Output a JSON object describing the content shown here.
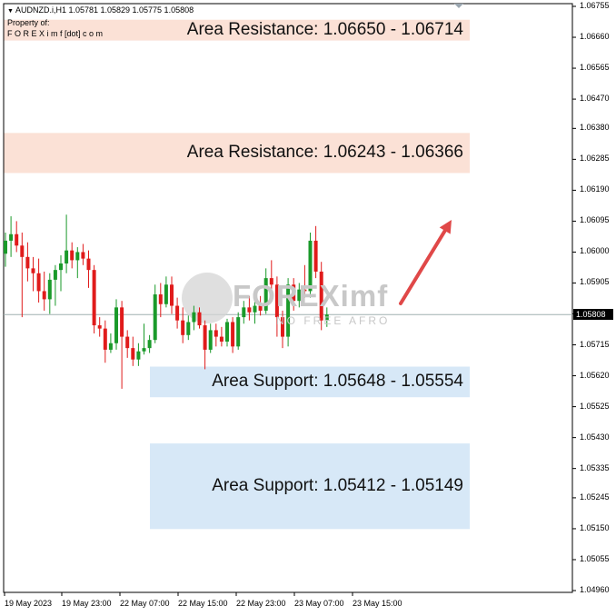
{
  "header": {
    "symbol_line": "AUDNZD.i,H1  1.05781 1.05829 1.05775 1.05808",
    "property_line": "Property of:",
    "brand_line": "F O R E X i m f [dot] c o m"
  },
  "watermark": {
    "brand": "FOREXimf",
    "tagline": "NO FREE AFRO"
  },
  "arrow": {
    "direction": "up-right",
    "color": "#e04848"
  },
  "current_price": {
    "value": 1.05808,
    "label": "1.05808"
  },
  "colors": {
    "bull": "#1a9a2a",
    "bear": "#e01b1b",
    "resistance_band": "#fbe1d6",
    "support_band": "#d7e8f7",
    "price_line": "#a0b0b0"
  },
  "chart_data": {
    "type": "candlestick",
    "symbol": "AUDNZD.i",
    "timeframe": "H1",
    "ylim": [
      1.0496,
      1.06755
    ],
    "y_ticks": [
      "1.06755",
      "1.06660",
      "1.06565",
      "1.06470",
      "1.06380",
      "1.06285",
      "1.06190",
      "1.06095",
      "1.06000",
      "1.05905",
      "1.05810",
      "1.05715",
      "1.05620",
      "1.05525",
      "1.05430",
      "1.05335",
      "1.05245",
      "1.05150",
      "1.05055",
      "1.04960"
    ],
    "x_ticks": [
      "19 May 2023",
      "19 May 23:00",
      "22 May 07:00",
      "22 May 15:00",
      "22 May 23:00",
      "23 May 07:00",
      "23 May 15:00"
    ],
    "zones": [
      {
        "type": "resistance",
        "label": "Area Resistance: 1.06650 - 1.06714",
        "low": 1.0665,
        "high": 1.06714
      },
      {
        "type": "resistance",
        "label": "Area Resistance: 1.06243 - 1.06366",
        "low": 1.06243,
        "high": 1.06366
      },
      {
        "type": "support",
        "label": "Area Support: 1.05648 - 1.05554",
        "low": 1.05554,
        "high": 1.05648
      },
      {
        "type": "support",
        "label": "Area Support: 1.05412 - 1.05149",
        "low": 1.05149,
        "high": 1.05412
      }
    ],
    "candles": [
      {
        "o": 1.05995,
        "h": 1.0606,
        "l": 1.05955,
        "c": 1.06035
      },
      {
        "o": 1.06035,
        "h": 1.0611,
        "l": 1.05985,
        "c": 1.06055
      },
      {
        "o": 1.06055,
        "h": 1.06095,
        "l": 1.06,
        "c": 1.0602
      },
      {
        "o": 1.0602,
        "h": 1.0606,
        "l": 1.058,
        "c": 1.05985
      },
      {
        "o": 1.05985,
        "h": 1.0603,
        "l": 1.0591,
        "c": 1.0595
      },
      {
        "o": 1.0595,
        "h": 1.05985,
        "l": 1.0588,
        "c": 1.05935
      },
      {
        "o": 1.05935,
        "h": 1.0598,
        "l": 1.05845,
        "c": 1.0588
      },
      {
        "o": 1.0588,
        "h": 1.0594,
        "l": 1.0582,
        "c": 1.05855
      },
      {
        "o": 1.05855,
        "h": 1.05935,
        "l": 1.0581,
        "c": 1.05915
      },
      {
        "o": 1.05915,
        "h": 1.0596,
        "l": 1.05835,
        "c": 1.05945
      },
      {
        "o": 1.05945,
        "h": 1.0599,
        "l": 1.0588,
        "c": 1.05965
      },
      {
        "o": 1.05965,
        "h": 1.06115,
        "l": 1.05935,
        "c": 1.06005
      },
      {
        "o": 1.06005,
        "h": 1.0603,
        "l": 1.0595,
        "c": 1.05975
      },
      {
        "o": 1.05975,
        "h": 1.06015,
        "l": 1.0592,
        "c": 1.06
      },
      {
        "o": 1.06,
        "h": 1.06025,
        "l": 1.0596,
        "c": 1.0598
      },
      {
        "o": 1.0598,
        "h": 1.06005,
        "l": 1.0589,
        "c": 1.05945
      },
      {
        "o": 1.05945,
        "h": 1.0596,
        "l": 1.0575,
        "c": 1.05775
      },
      {
        "o": 1.05775,
        "h": 1.058,
        "l": 1.0574,
        "c": 1.05765
      },
      {
        "o": 1.05765,
        "h": 1.0579,
        "l": 1.0566,
        "c": 1.057
      },
      {
        "o": 1.057,
        "h": 1.0575,
        "l": 1.0569,
        "c": 1.0572
      },
      {
        "o": 1.0572,
        "h": 1.05855,
        "l": 1.057,
        "c": 1.0583
      },
      {
        "o": 1.0583,
        "h": 1.0585,
        "l": 1.0558,
        "c": 1.0574
      },
      {
        "o": 1.0574,
        "h": 1.0576,
        "l": 1.05675,
        "c": 1.05705
      },
      {
        "o": 1.05705,
        "h": 1.0574,
        "l": 1.0565,
        "c": 1.0567
      },
      {
        "o": 1.0567,
        "h": 1.0572,
        "l": 1.0565,
        "c": 1.05695
      },
      {
        "o": 1.05695,
        "h": 1.0578,
        "l": 1.05685,
        "c": 1.05705
      },
      {
        "o": 1.05705,
        "h": 1.05745,
        "l": 1.0569,
        "c": 1.0573
      },
      {
        "o": 1.0573,
        "h": 1.059,
        "l": 1.0572,
        "c": 1.0587
      },
      {
        "o": 1.0587,
        "h": 1.05905,
        "l": 1.058,
        "c": 1.0584
      },
      {
        "o": 1.0584,
        "h": 1.05925,
        "l": 1.0583,
        "c": 1.059
      },
      {
        "o": 1.059,
        "h": 1.05925,
        "l": 1.0581,
        "c": 1.05835
      },
      {
        "o": 1.05835,
        "h": 1.0586,
        "l": 1.05765,
        "c": 1.0579
      },
      {
        "o": 1.0579,
        "h": 1.0583,
        "l": 1.0572,
        "c": 1.05745
      },
      {
        "o": 1.05745,
        "h": 1.05805,
        "l": 1.0573,
        "c": 1.05785
      },
      {
        "o": 1.05785,
        "h": 1.05835,
        "l": 1.0576,
        "c": 1.05815
      },
      {
        "o": 1.05815,
        "h": 1.0583,
        "l": 1.05765,
        "c": 1.05775
      },
      {
        "o": 1.05775,
        "h": 1.0579,
        "l": 1.0564,
        "c": 1.057
      },
      {
        "o": 1.057,
        "h": 1.0578,
        "l": 1.0569,
        "c": 1.0576
      },
      {
        "o": 1.0576,
        "h": 1.0578,
        "l": 1.0571,
        "c": 1.0574
      },
      {
        "o": 1.0574,
        "h": 1.0577,
        "l": 1.0571,
        "c": 1.05725
      },
      {
        "o": 1.05725,
        "h": 1.05795,
        "l": 1.0571,
        "c": 1.05785
      },
      {
        "o": 1.05785,
        "h": 1.058,
        "l": 1.0569,
        "c": 1.0571
      },
      {
        "o": 1.0571,
        "h": 1.05815,
        "l": 1.057,
        "c": 1.058
      },
      {
        "o": 1.058,
        "h": 1.0585,
        "l": 1.0578,
        "c": 1.0583
      },
      {
        "o": 1.0583,
        "h": 1.05865,
        "l": 1.0579,
        "c": 1.05815
      },
      {
        "o": 1.05815,
        "h": 1.0585,
        "l": 1.0578,
        "c": 1.05835
      },
      {
        "o": 1.05835,
        "h": 1.05865,
        "l": 1.05805,
        "c": 1.0582
      },
      {
        "o": 1.0582,
        "h": 1.0595,
        "l": 1.0581,
        "c": 1.0592
      },
      {
        "o": 1.0592,
        "h": 1.05975,
        "l": 1.0586,
        "c": 1.059
      },
      {
        "o": 1.059,
        "h": 1.05925,
        "l": 1.0574,
        "c": 1.058
      },
      {
        "o": 1.058,
        "h": 1.0582,
        "l": 1.05705,
        "c": 1.0574
      },
      {
        "o": 1.0574,
        "h": 1.0592,
        "l": 1.0571,
        "c": 1.059
      },
      {
        "o": 1.059,
        "h": 1.0592,
        "l": 1.0582,
        "c": 1.0585
      },
      {
        "o": 1.0585,
        "h": 1.05905,
        "l": 1.0583,
        "c": 1.05885
      },
      {
        "o": 1.05885,
        "h": 1.0596,
        "l": 1.0586,
        "c": 1.0588
      },
      {
        "o": 1.0588,
        "h": 1.0606,
        "l": 1.0586,
        "c": 1.06035
      },
      {
        "o": 1.06035,
        "h": 1.0608,
        "l": 1.0592,
        "c": 1.0594
      },
      {
        "o": 1.0594,
        "h": 1.0597,
        "l": 1.0576,
        "c": 1.0579
      },
      {
        "o": 1.0579,
        "h": 1.0583,
        "l": 1.0577,
        "c": 1.05808
      }
    ]
  }
}
